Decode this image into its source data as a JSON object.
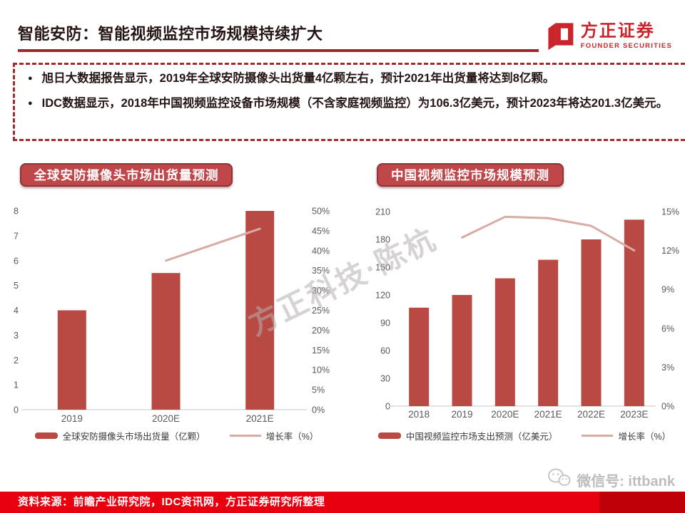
{
  "slide": {
    "title": "智能安防：智能视频监控市场规模持续扩大",
    "logo": {
      "name": "方正证券",
      "subtitle": "FOUNDER SECURITIES"
    },
    "bullets": [
      "旭日大数据报告显示，2019年全球安防摄像头出货量4亿颗左右，预计2021年出货量将达到8亿颗。",
      "IDC数据显示，2018年中国视频监控设备市场规模（不含家庭视频监控）为106.3亿美元，预计2023年将达201.3亿美元。"
    ],
    "watermark": "方正科技·陈杭",
    "wechat": "微信号: ittbank",
    "source": "资料来源：前瞻产业研究院，IDC资讯网，方正证券研究所整理"
  },
  "colors": {
    "bar": "#b94a43",
    "line": "#d9aba5",
    "badge_bg": "#bf4649",
    "badge_border": "#8e3336",
    "underline": "#a1262d",
    "footer_red": "#e8000f",
    "footer_red_dark": "#c00008",
    "logo_red": "#c9252b",
    "axis_text": "#595959",
    "axis_line": "#d9d9d9"
  },
  "chart_data": [
    {
      "type": "bar",
      "title": "全球安防摄像头市场出货量预测",
      "categories": [
        "2019",
        "2020E",
        "2021E"
      ],
      "series": [
        {
          "name": "全球安防摄像头市场出货量（亿颗）",
          "type": "bar",
          "values": [
            4,
            5.5,
            8
          ]
        },
        {
          "name": "增长率（%）",
          "type": "line",
          "values": [
            null,
            37.5,
            45.5
          ]
        }
      ],
      "left_axis": {
        "min": 0,
        "max": 8,
        "ticks": [
          "0",
          "1",
          "2",
          "3",
          "4",
          "5",
          "6",
          "7",
          "8"
        ]
      },
      "right_axis": {
        "min": 0,
        "max": 50,
        "ticks": [
          "0%",
          "5%",
          "10%",
          "15%",
          "20%",
          "25%",
          "30%",
          "35%",
          "40%",
          "45%",
          "50%"
        ]
      },
      "grid": false,
      "legend_position": "bottom"
    },
    {
      "type": "bar",
      "title": "中国视频监控市场规模预测",
      "categories": [
        "2018",
        "2019",
        "2020E",
        "2021E",
        "2022E",
        "2023E"
      ],
      "series": [
        {
          "name": "中国视频监控市场支出预测（亿美元）",
          "type": "bar",
          "values": [
            106.3,
            120,
            138,
            158,
            180,
            201.3
          ]
        },
        {
          "name": "增长率（%）",
          "type": "line",
          "values": [
            null,
            13.0,
            14.6,
            14.5,
            13.9,
            12.0
          ]
        }
      ],
      "left_axis": {
        "min": 0,
        "max": 210,
        "ticks": [
          "0",
          "30",
          "60",
          "90",
          "120",
          "150",
          "180",
          "210"
        ]
      },
      "right_axis": {
        "min": 0,
        "max": 15,
        "ticks": [
          "0%",
          "3%",
          "6%",
          "9%",
          "12%",
          "15%"
        ]
      },
      "grid": false,
      "legend_position": "bottom"
    }
  ]
}
